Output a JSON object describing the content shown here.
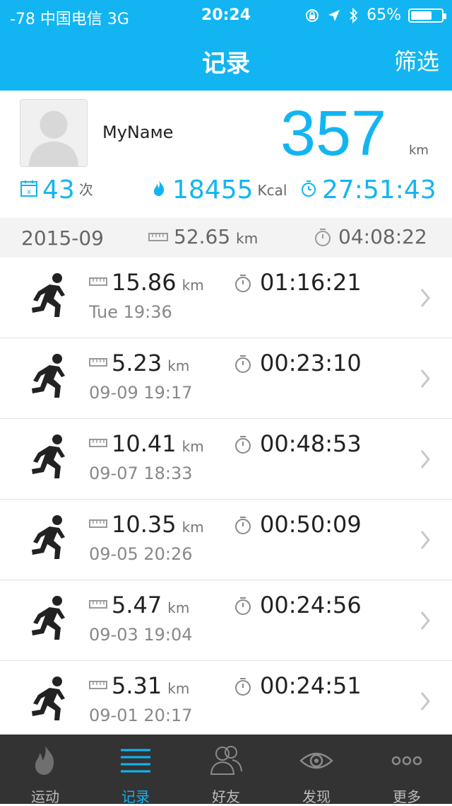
{
  "status_bar": {
    "carrier": "-78 中国电信  3G",
    "time": "20:24",
    "battery": "65%"
  },
  "nav": {
    "title": "记录",
    "filter": "筛选"
  },
  "profile": {
    "name": "MyNaмe",
    "total_distance": "357",
    "total_unit": "km",
    "stats": {
      "count_value": "43",
      "count_unit": "次",
      "calories_value": "18455",
      "calories_unit": "Kcal",
      "duration": "27:51:43"
    }
  },
  "month_summary": {
    "label": "2015-09",
    "distance_value": "52.65",
    "distance_unit": "km",
    "duration": "04:08:22"
  },
  "records": [
    {
      "distance": "15.86",
      "unit": "km",
      "duration": "01:16:21",
      "date": "Tue 19:36"
    },
    {
      "distance": "5.23",
      "unit": "km",
      "duration": "00:23:10",
      "date": "09-09 19:17"
    },
    {
      "distance": "10.41",
      "unit": "km",
      "duration": "00:48:53",
      "date": "09-07 18:33"
    },
    {
      "distance": "10.35",
      "unit": "km",
      "duration": "00:50:09",
      "date": "09-05 20:26"
    },
    {
      "distance": "5.47",
      "unit": "km",
      "duration": "00:24:56",
      "date": "09-03 19:04"
    },
    {
      "distance": "5.31",
      "unit": "km",
      "duration": "00:24:51",
      "date": "09-01 20:17"
    }
  ],
  "tabs": [
    {
      "label": "运动",
      "icon": "flame-icon",
      "active": false
    },
    {
      "label": "记录",
      "icon": "list-icon",
      "active": true
    },
    {
      "label": "好友",
      "icon": "friends-icon",
      "active": false
    },
    {
      "label": "发现",
      "icon": "eye-icon",
      "active": false
    },
    {
      "label": "更多",
      "icon": "more-icon",
      "active": false
    }
  ],
  "colors": {
    "accent": "#12b5f2",
    "tabbar_bg": "#333334"
  }
}
